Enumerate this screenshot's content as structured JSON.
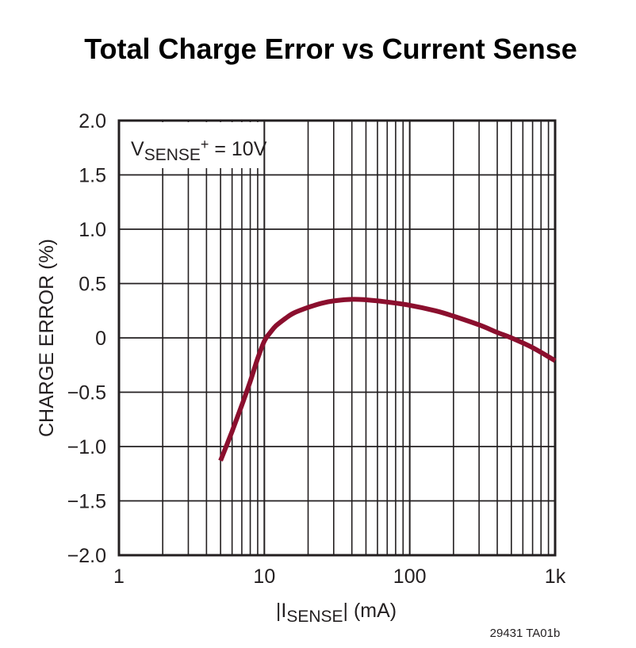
{
  "chart_data": {
    "type": "line",
    "title": "Total Charge Error vs Current Sense",
    "xlabel": "|I_SENSE| (mA)",
    "xlabel_parts": {
      "pre": "|I",
      "sub": "SENSE",
      "post": "| (mA)"
    },
    "ylabel": "CHARGE ERROR (%)",
    "xscale": "log",
    "xlim": [
      1,
      1000
    ],
    "ylim": [
      -2.0,
      2.0
    ],
    "x_ticks": [
      1,
      10,
      100,
      1000
    ],
    "x_tick_labels": [
      "1",
      "10",
      "100",
      "1k"
    ],
    "y_ticks": [
      2.0,
      1.5,
      1.0,
      0.5,
      0,
      -0.5,
      -1.0,
      -1.5,
      -2.0
    ],
    "y_tick_labels": [
      "2.0",
      "1.5",
      "1.0",
      "0.5",
      "0",
      "−0.5",
      "−1.0",
      "−1.5",
      "−2.0"
    ],
    "grid": true,
    "annotation": {
      "pre": "V",
      "sub": "SENSE",
      "sup": "+",
      "post": " = 10V"
    },
    "series": [
      {
        "name": "V_SENSE+ = 10V",
        "color": "#8b0f2e",
        "x": [
          5,
          6,
          7,
          8,
          9,
          10,
          11,
          12,
          14,
          16,
          20,
          25,
          30,
          40,
          50,
          70,
          100,
          150,
          200,
          300,
          400,
          500,
          700,
          1000
        ],
        "y": [
          -1.13,
          -0.86,
          -0.62,
          -0.4,
          -0.19,
          -0.03,
          0.05,
          0.11,
          0.18,
          0.23,
          0.28,
          0.32,
          0.34,
          0.355,
          0.35,
          0.33,
          0.3,
          0.25,
          0.2,
          0.12,
          0.05,
          0.0,
          -0.09,
          -0.21
        ]
      }
    ],
    "footnote": "29431 TA01b"
  }
}
